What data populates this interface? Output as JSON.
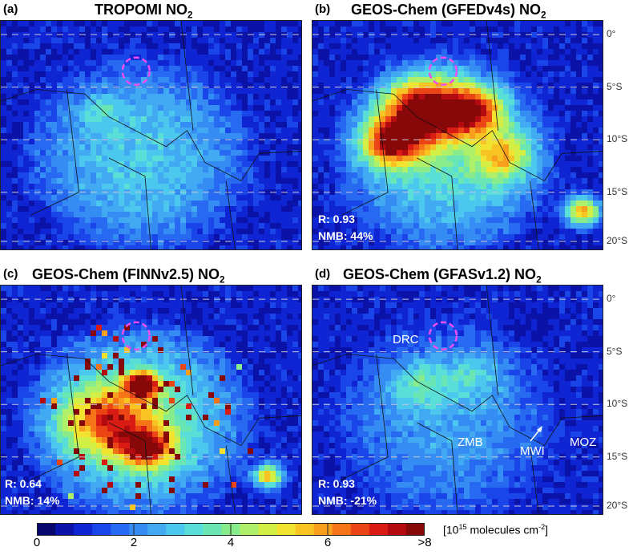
{
  "panels": [
    {
      "label": "(a)",
      "title": "TROPOMI NO",
      "title_sub": "2",
      "stats": null
    },
    {
      "label": "(b)",
      "title": "GEOS-Chem (GFEDv4s) NO",
      "title_sub": "2",
      "stats": {
        "r": "R: 0.93",
        "nmb": "NMB: 44%"
      }
    },
    {
      "label": "(c)",
      "title": "GEOS-Chem (FINNv2.5) NO",
      "title_sub": "2",
      "stats": {
        "r": "R: 0.64",
        "nmb": "NMB: 14%"
      }
    },
    {
      "label": "(d)",
      "title": "GEOS-Chem (GFASv1.2) NO",
      "title_sub": "2",
      "stats": {
        "r": "R: 0.93",
        "nmb": "NMB: -21%"
      }
    }
  ],
  "latitudes": [
    "0°",
    "5°S",
    "10°S",
    "15°S",
    "20°S"
  ],
  "countries": {
    "drc": "DRC",
    "zmb": "ZMB",
    "mwi": "MWI",
    "moz": "MOZ"
  },
  "colorbar": {
    "ticks": [
      "0",
      "2",
      "4",
      "6",
      ">8"
    ],
    "unit_prefix": "[10",
    "unit_exp": "15",
    "unit_suffix": " molecules cm",
    "unit_exp2": "-2",
    "unit_close": "]",
    "colors": [
      "#07076d",
      "#0a12a8",
      "#0f25d4",
      "#1a45e8",
      "#2769f0",
      "#358cf3",
      "#42aaf2",
      "#4cc8ee",
      "#59dfd8",
      "#6ae6b4",
      "#88ec8c",
      "#aef06a",
      "#d3ef45",
      "#f1e330",
      "#f7c424",
      "#f8a01d",
      "#f57418",
      "#ec4515",
      "#d81c14",
      "#b30b0f",
      "#860808"
    ]
  },
  "chart_data": {
    "type": "heatmap",
    "title": "",
    "panels": [
      "TROPOMI NO2",
      "GEOS-Chem (GFEDv4s) NO2",
      "GEOS-Chem (FINNv2.5) NO2",
      "GEOS-Chem (GFASv1.2) NO2"
    ],
    "y_axis_ticks": [
      "0°",
      "5°S",
      "10°S",
      "15°S",
      "20°S"
    ],
    "colorbar_range": [
      0,
      8
    ],
    "colorbar_ticks": [
      "0",
      "2",
      "4",
      "6",
      ">8"
    ],
    "colorbar_label": "[10^15 molecules cm^-2]",
    "statistics": [
      {
        "panel": "(b)",
        "R": 0.93,
        "NMB_percent": 44
      },
      {
        "panel": "(c)",
        "R": 0.64,
        "NMB_percent": 14
      },
      {
        "panel": "(d)",
        "R": 0.93,
        "NMB_percent": -21
      }
    ],
    "grid": true
  }
}
